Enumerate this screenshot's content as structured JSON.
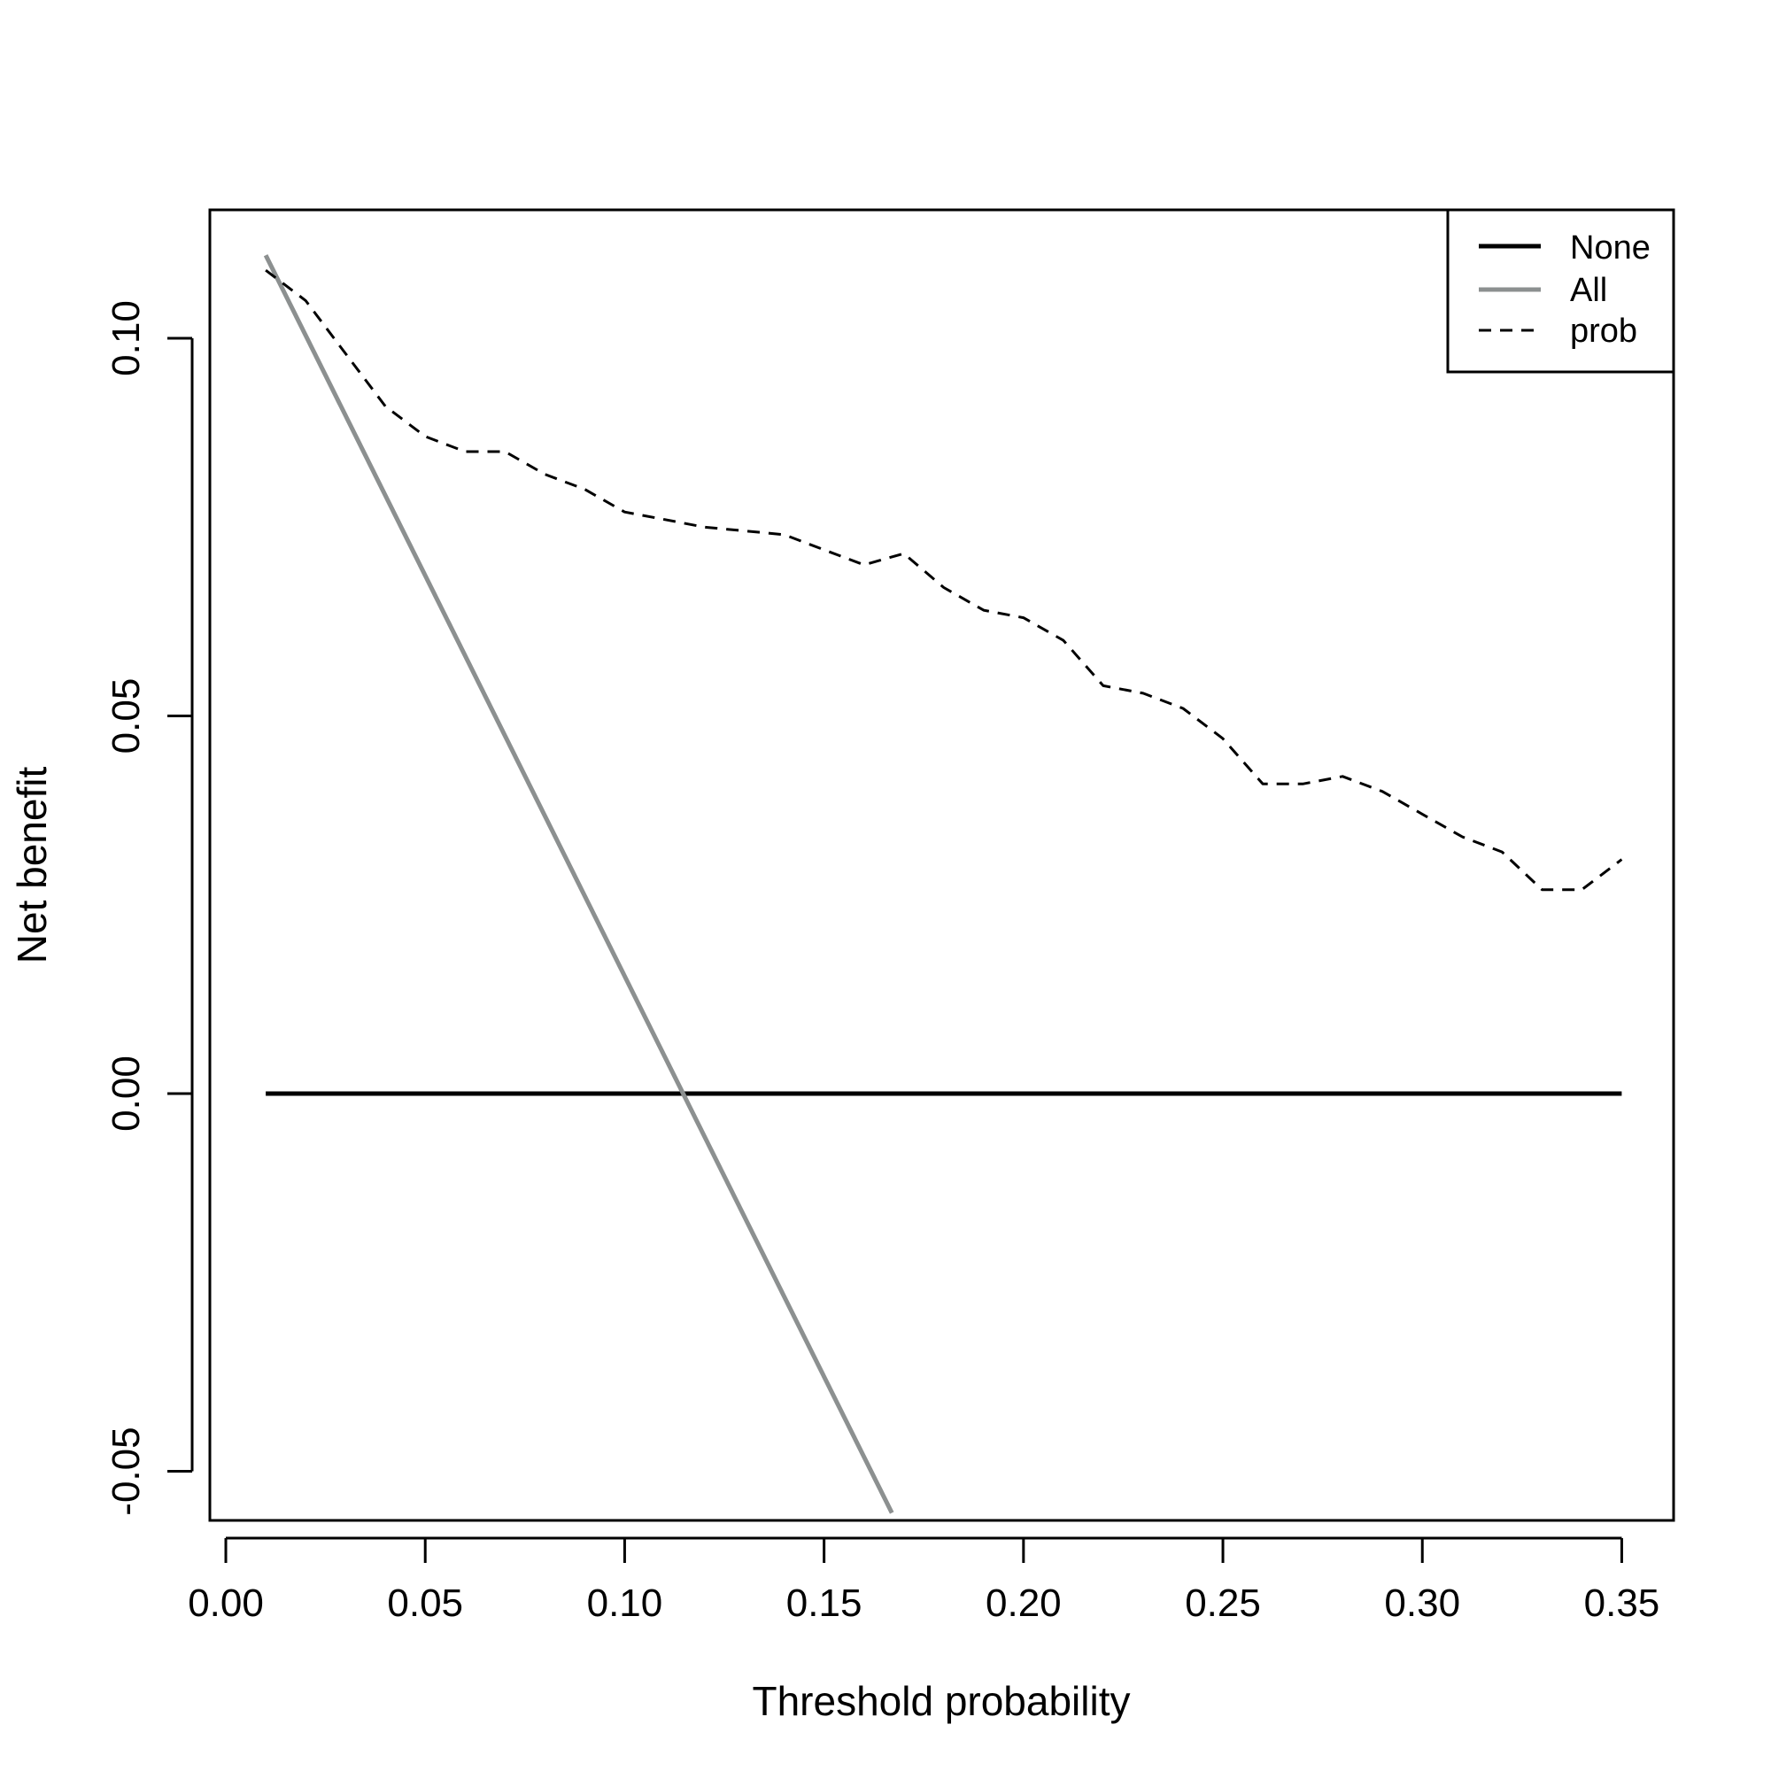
{
  "chart_data": {
    "type": "line",
    "title": "",
    "xlabel": "Threshold probability",
    "ylabel": "Net benefit",
    "xlim": [
      -0.004,
      0.363
    ],
    "ylim": [
      -0.0565,
      0.117
    ],
    "xticks": [
      0.0,
      0.05,
      0.1,
      0.15,
      0.2,
      0.25,
      0.3,
      0.35
    ],
    "xtick_labels": [
      "0.00",
      "0.05",
      "0.10",
      "0.15",
      "0.20",
      "0.25",
      "0.30",
      "0.35"
    ],
    "yticks": [
      -0.05,
      0.0,
      0.05,
      0.1
    ],
    "ytick_labels": [
      "-0.05",
      "0.00",
      "0.05",
      "0.10"
    ],
    "grid": false,
    "legend_position": "top-right",
    "series": [
      {
        "name": "None",
        "color": "#000000",
        "style": "solid",
        "x": [
          0.01,
          0.35
        ],
        "y": [
          0.0,
          0.0
        ]
      },
      {
        "name": "All",
        "color": "#8c9090",
        "style": "solid",
        "x": [
          0.01,
          0.167
        ],
        "y": [
          0.111,
          -0.0555
        ]
      },
      {
        "name": "prob",
        "color": "#000000",
        "style": "dashed",
        "x": [
          0.01,
          0.02,
          0.03,
          0.04,
          0.05,
          0.06,
          0.07,
          0.08,
          0.09,
          0.1,
          0.11,
          0.12,
          0.13,
          0.14,
          0.15,
          0.16,
          0.17,
          0.18,
          0.19,
          0.2,
          0.21,
          0.22,
          0.23,
          0.24,
          0.25,
          0.26,
          0.27,
          0.28,
          0.29,
          0.3,
          0.31,
          0.32,
          0.33,
          0.34,
          0.35
        ],
        "y": [
          0.109,
          0.105,
          0.098,
          0.091,
          0.087,
          0.085,
          0.085,
          0.082,
          0.08,
          0.077,
          0.076,
          0.075,
          0.0745,
          0.074,
          0.072,
          0.07,
          0.0715,
          0.067,
          0.064,
          0.063,
          0.06,
          0.054,
          0.053,
          0.051,
          0.047,
          0.041,
          0.041,
          0.042,
          0.04,
          0.037,
          0.034,
          0.032,
          0.027,
          0.027,
          0.031
        ]
      }
    ]
  }
}
